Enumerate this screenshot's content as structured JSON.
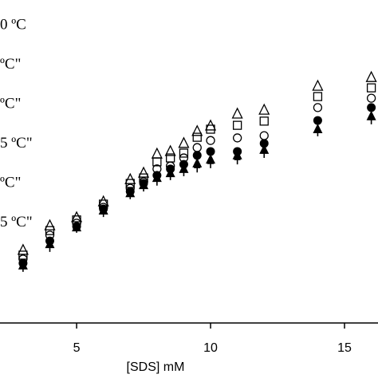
{
  "chart_data": {
    "type": "scatter",
    "x_label": "[SDS] mM",
    "xlim": [
      2.14,
      16.25
    ],
    "xticks": [
      5,
      10,
      15
    ],
    "ylim": [
      0,
      100
    ],
    "x": [
      3,
      4,
      5,
      6,
      7,
      7.5,
      8,
      8.5,
      9,
      9.5,
      10,
      11,
      12,
      14,
      16
    ],
    "series": [
      {
        "name": "0 ºC",
        "color": "#000000",
        "marker": "triangle-open",
        "values": [
          22.5,
          30.1,
          32.6,
          37.5,
          44.4,
          46.4,
          52.3,
          53.1,
          55.6,
          59.3,
          61.0,
          64.7,
          65.9,
          73.3,
          76.0
        ]
      },
      {
        "name": "ºC\"",
        "color": "#000000",
        "marker": "square-open",
        "values": [
          21.0,
          28.6,
          31.9,
          36.8,
          43.2,
          44.9,
          49.9,
          51.1,
          52.6,
          57.5,
          60.0,
          61.2,
          62.5,
          70.1,
          72.8
        ]
      },
      {
        "name": "ºC\"",
        "color": "#000000",
        "marker": "circle-open",
        "values": [
          19.8,
          27.2,
          30.9,
          35.8,
          41.7,
          43.7,
          47.7,
          48.6,
          51.1,
          54.3,
          56.5,
          57.3,
          58.0,
          66.7,
          69.6
        ]
      },
      {
        "name": "5 ºC\"",
        "color": "#000000",
        "marker": "circle-filled",
        "values": [
          18.5,
          25.4,
          29.9,
          35.3,
          40.7,
          43.2,
          45.7,
          47.7,
          49.1,
          51.9,
          53.1,
          53.1,
          55.6,
          62.7,
          66.7
        ]
      },
      {
        "name": "ºC\"",
        "color": "#000000",
        "marker": "triangle-filled",
        "values": [
          17.8,
          24.4,
          29.6,
          34.8,
          40.2,
          42.7,
          44.9,
          46.4,
          47.7,
          49.4,
          50.6,
          51.9,
          53.6,
          60.0,
          64.0
        ]
      },
      {
        "name": "5 ºC\"",
        "color": "#000000",
        "marker": "plus",
        "values": [
          17.3,
          23.5,
          29.4,
          34.3,
          39.8,
          42.2,
          44.0,
          45.7,
          46.9,
          48.1,
          49.4,
          50.6,
          52.6,
          59.3,
          63.0
        ]
      }
    ]
  }
}
